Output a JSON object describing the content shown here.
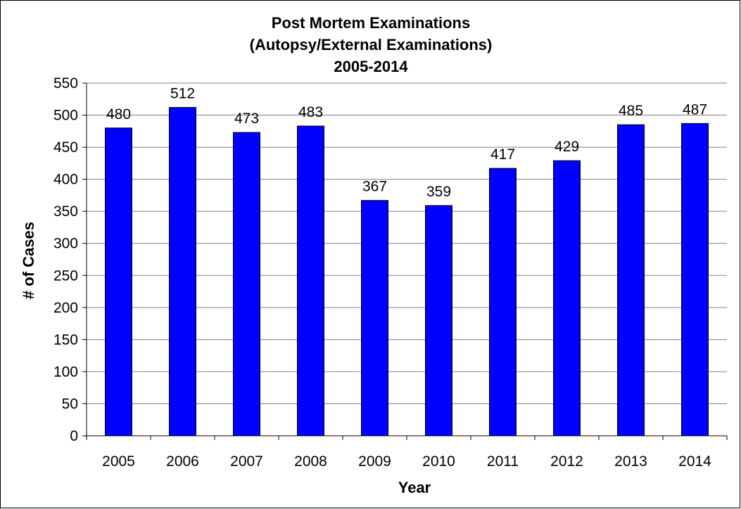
{
  "chart_data": {
    "type": "bar",
    "title_lines": [
      "Post Mortem Examinations",
      "(Autopsy/External Examinations)",
      "2005-2014"
    ],
    "xlabel": "Year",
    "ylabel": "# of Cases",
    "categories": [
      "2005",
      "2006",
      "2007",
      "2008",
      "2009",
      "2010",
      "2011",
      "2012",
      "2013",
      "2014"
    ],
    "values": [
      480,
      512,
      473,
      483,
      367,
      359,
      417,
      429,
      485,
      487
    ],
    "ylim": [
      0,
      550
    ],
    "yticks": [
      "0",
      "50",
      "100",
      "150",
      "200",
      "250",
      "300",
      "350",
      "400",
      "450",
      "500",
      "550"
    ],
    "data_labels": [
      "480",
      "512",
      "473",
      "483",
      "367",
      "359",
      "417",
      "429",
      "485",
      "487"
    ],
    "grid": true,
    "legend": "none",
    "bar_color": "#0000ff",
    "bar_edge_color": "#000000",
    "gridline_color": "#808080"
  }
}
